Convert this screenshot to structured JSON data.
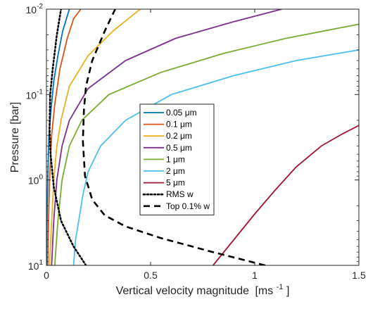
{
  "chart_data": {
    "type": "line",
    "xlabel": "Vertical velocity magnitude",
    "xlabel_unit": "[ms",
    "xlabel_unit_exp": "-1",
    "xlabel_unit_close": "]",
    "ylabel": "Pressure [bar]",
    "xlim": [
      0,
      1.5
    ],
    "ylim": [
      0.01,
      10
    ],
    "y_scale": "log",
    "y_reversed": true,
    "grid": false,
    "legend_position": "center",
    "x_ticks": [
      {
        "value": 0,
        "label": "0"
      },
      {
        "value": 0.5,
        "label": "0.5"
      },
      {
        "value": 1,
        "label": "1"
      },
      {
        "value": 1.5,
        "label": "1.5"
      }
    ],
    "y_ticks": [
      {
        "value": 0.01,
        "base": "10",
        "exp": "-2"
      },
      {
        "value": 0.1,
        "base": "10",
        "exp": "-1"
      },
      {
        "value": 1,
        "base": "10",
        "exp": "0"
      },
      {
        "value": 10,
        "base": "10",
        "exp": "1"
      }
    ],
    "series": [
      {
        "name": "0.05 μm",
        "color": "#0072BD",
        "dash": "solid",
        "points": [
          [
            0.0,
            10
          ],
          [
            0.003,
            3
          ],
          [
            0.006,
            1
          ],
          [
            0.012,
            0.3
          ],
          [
            0.022,
            0.15
          ],
          [
            0.035,
            0.07
          ],
          [
            0.055,
            0.035
          ],
          [
            0.078,
            0.018
          ],
          [
            0.11,
            0.01
          ]
        ]
      },
      {
        "name": "0.1 μm",
        "color": "#D95319",
        "dash": "solid",
        "points": [
          [
            0.006,
            10
          ],
          [
            0.01,
            3
          ],
          [
            0.015,
            1
          ],
          [
            0.025,
            0.3
          ],
          [
            0.04,
            0.13
          ],
          [
            0.065,
            0.05
          ],
          [
            0.1,
            0.022
          ],
          [
            0.13,
            0.013
          ],
          [
            0.165,
            0.01
          ]
        ]
      },
      {
        "name": "0.2 μm",
        "color": "#EDB120",
        "dash": "solid",
        "points": [
          [
            0.015,
            10
          ],
          [
            0.025,
            3
          ],
          [
            0.035,
            1
          ],
          [
            0.05,
            0.4
          ],
          [
            0.07,
            0.2
          ],
          [
            0.11,
            0.08
          ],
          [
            0.2,
            0.035
          ],
          [
            0.32,
            0.018
          ],
          [
            0.45,
            0.01
          ]
        ]
      },
      {
        "name": "0.5 μm",
        "color": "#7E2F8E",
        "dash": "solid",
        "points": [
          [
            0.025,
            10
          ],
          [
            0.035,
            3
          ],
          [
            0.05,
            1
          ],
          [
            0.075,
            0.4
          ],
          [
            0.11,
            0.2
          ],
          [
            0.2,
            0.085
          ],
          [
            0.38,
            0.04
          ],
          [
            0.62,
            0.022
          ],
          [
            0.9,
            0.014
          ],
          [
            1.13,
            0.01
          ]
        ]
      },
      {
        "name": "1 μm",
        "color": "#77AC30",
        "dash": "solid",
        "points": [
          [
            0.04,
            10
          ],
          [
            0.055,
            3
          ],
          [
            0.075,
            1
          ],
          [
            0.11,
            0.4
          ],
          [
            0.17,
            0.2
          ],
          [
            0.3,
            0.1
          ],
          [
            0.55,
            0.055
          ],
          [
            0.85,
            0.033
          ],
          [
            1.15,
            0.022
          ],
          [
            1.5,
            0.015
          ]
        ]
      },
      {
        "name": "2 μm",
        "color": "#4DBEEE",
        "dash": "solid",
        "points": [
          [
            0.13,
            10
          ],
          [
            0.14,
            5
          ],
          [
            0.155,
            3
          ],
          [
            0.175,
            1.5
          ],
          [
            0.2,
            0.8
          ],
          [
            0.26,
            0.4
          ],
          [
            0.38,
            0.2
          ],
          [
            0.6,
            0.1
          ],
          [
            0.9,
            0.06
          ],
          [
            1.2,
            0.04
          ],
          [
            1.5,
            0.03
          ]
        ]
      },
      {
        "name": "5 μm",
        "color": "#A2142F",
        "dash": "solid",
        "points": [
          [
            0.8,
            10
          ],
          [
            0.9,
            5
          ],
          [
            1.0,
            2.5
          ],
          [
            1.1,
            1.3
          ],
          [
            1.2,
            0.7
          ],
          [
            1.32,
            0.4
          ],
          [
            1.42,
            0.29
          ],
          [
            1.5,
            0.23
          ]
        ]
      },
      {
        "name": "RMS w",
        "color": "#000000",
        "dash": "dotted",
        "points": [
          [
            0.19,
            10
          ],
          [
            0.13,
            6
          ],
          [
            0.07,
            3
          ],
          [
            0.035,
            1.2
          ],
          [
            0.02,
            0.5
          ],
          [
            0.015,
            0.25
          ],
          [
            0.018,
            0.1
          ],
          [
            0.03,
            0.05
          ],
          [
            0.05,
            0.02
          ],
          [
            0.07,
            0.01
          ]
        ]
      },
      {
        "name": "Top 0.1% w",
        "color": "#000000",
        "dash": "dashed",
        "points": [
          [
            1.05,
            10
          ],
          [
            0.8,
            7
          ],
          [
            0.55,
            4.8
          ],
          [
            0.38,
            3.5
          ],
          [
            0.28,
            2.6
          ],
          [
            0.22,
            1.7
          ],
          [
            0.185,
            0.9
          ],
          [
            0.175,
            0.35
          ],
          [
            0.18,
            0.15
          ],
          [
            0.19,
            0.08
          ],
          [
            0.22,
            0.04
          ],
          [
            0.28,
            0.018
          ],
          [
            0.33,
            0.01
          ]
        ]
      }
    ]
  }
}
